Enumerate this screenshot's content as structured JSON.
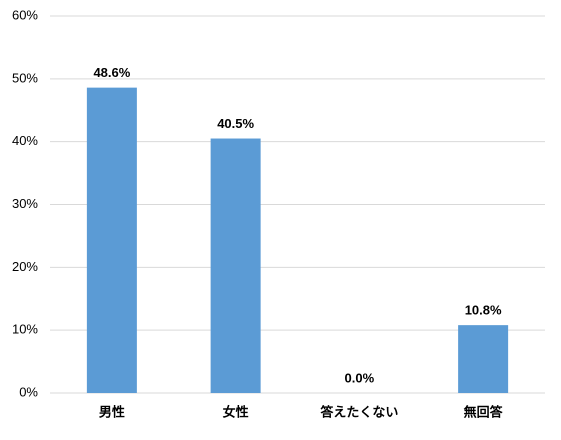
{
  "chart_data": {
    "type": "bar",
    "categories": [
      "男性",
      "女性",
      "答えたくない",
      "無回答"
    ],
    "values": [
      48.6,
      40.5,
      0.0,
      10.8
    ],
    "value_labels": [
      "48.6%",
      "40.5%",
      "0.0%",
      "10.8%"
    ],
    "color": "#5b9bd5",
    "ylim": [
      0,
      60
    ],
    "yticks": [
      {
        "value": 0,
        "label": "0%"
      },
      {
        "value": 10,
        "label": "10%"
      },
      {
        "value": 20,
        "label": "20%"
      },
      {
        "value": 30,
        "label": "30%"
      },
      {
        "value": 40,
        "label": "40%"
      },
      {
        "value": 50,
        "label": "50%"
      },
      {
        "value": 60,
        "label": "60%"
      }
    ],
    "grid": true
  }
}
